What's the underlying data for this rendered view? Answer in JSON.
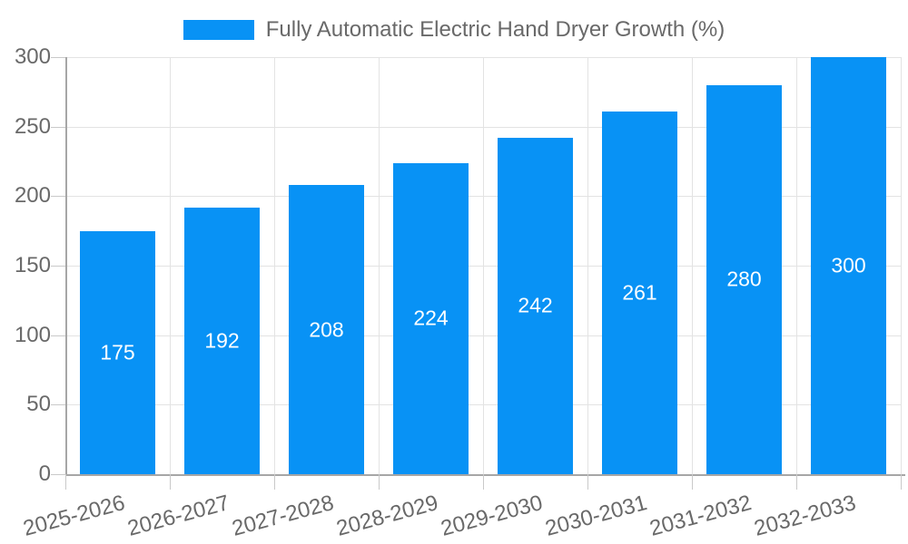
{
  "chart_data": {
    "type": "bar",
    "title": "",
    "legend": "Fully Automatic Electric Hand Dryer Growth (%)",
    "legend_position": "top",
    "categories": [
      "2025-2026",
      "2026-2027",
      "2027-2028",
      "2028-2029",
      "2029-2030",
      "2030-2031",
      "2031-2032",
      "2032-2033"
    ],
    "values": [
      175,
      192,
      208,
      224,
      242,
      261,
      280,
      300
    ],
    "xlabel": "",
    "ylabel": "",
    "ylim": [
      0,
      300
    ],
    "yticks": [
      0,
      50,
      100,
      150,
      200,
      250,
      300
    ],
    "grid": true,
    "x_label_rotation_deg": -15,
    "colors": {
      "bar": "#0892f5",
      "value_text": "#ffffff",
      "axis_text": "#696969",
      "grid": "#e3e3e3",
      "tick": "#c9c9c9",
      "axis_line": "#a6a6a6"
    }
  }
}
